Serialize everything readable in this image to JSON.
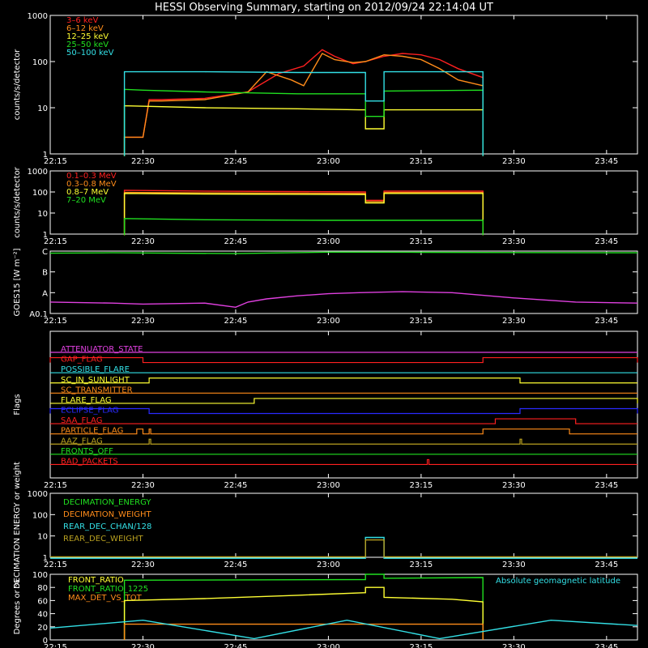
{
  "title": "HESSI Observing Summary, starting on 2012/09/24 22:14:04 UT",
  "x_ticks": [
    "22:15",
    "22:30",
    "22:45",
    "23:00",
    "23:15",
    "23:30",
    "23:45"
  ],
  "colors": {
    "red": "#ff2020",
    "orange": "#ff8c1a",
    "yellow": "#ffff33",
    "green": "#20e020",
    "cyan": "#33e0e6",
    "magenta": "#e040e0",
    "blue": "#2a2aff",
    "olive": "#b8a020",
    "white": "#ffffff"
  },
  "chart_data": [
    {
      "type": "line",
      "name": "lightcurve_low",
      "ylabel": "counts/s/detector",
      "y_scale": "log",
      "ylim": [
        1,
        1000
      ],
      "y_ticks": [
        "1",
        "10",
        "100",
        "1000"
      ],
      "legend": [
        "3–6 keV",
        "6–12 keV",
        "12–25 keV",
        "25–50 keV",
        "50–100 keV"
      ],
      "legend_colors": [
        "red",
        "orange",
        "yellow",
        "green",
        "cyan"
      ],
      "series": [
        {
          "name": "3–6 keV",
          "color": "red",
          "t": [
            "22:27",
            "22:27",
            "22:30",
            "22:31",
            "22:33",
            "22:40",
            "22:47",
            "22:52",
            "22:56",
            "22:59",
            "23:01",
            "23:04",
            "23:06",
            "23:09",
            "23:12",
            "23:15",
            "23:18",
            "23:21",
            "23:25",
            "23:25"
          ],
          "v": [
            0.9,
            2.3,
            2.3,
            15,
            15,
            16,
            22,
            55,
            80,
            180,
            130,
            90,
            100,
            130,
            150,
            140,
            110,
            70,
            45,
            0.9
          ]
        },
        {
          "name": "6–12 keV",
          "color": "orange",
          "t": [
            "22:27",
            "22:27",
            "22:30",
            "22:31",
            "22:33",
            "22:40",
            "22:47",
            "22:50",
            "22:54",
            "22:56",
            "22:59",
            "23:01",
            "23:04",
            "23:06",
            "23:09",
            "23:12",
            "23:15",
            "23:18",
            "23:21",
            "23:25",
            "23:25"
          ],
          "v": [
            0.9,
            2.3,
            2.3,
            14,
            14,
            15,
            22,
            60,
            40,
            30,
            150,
            110,
            95,
            100,
            140,
            130,
            110,
            70,
            40,
            30,
            0.9
          ]
        },
        {
          "name": "12–25 keV",
          "color": "yellow",
          "t": [
            "22:27",
            "22:27",
            "22:40",
            "22:55",
            "23:05",
            "23:06",
            "23:06",
            "23:09",
            "23:09",
            "23:25",
            "23:25"
          ],
          "v": [
            0.9,
            11,
            10,
            9.5,
            9,
            9,
            3.5,
            3.5,
            9,
            9,
            0.9
          ]
        },
        {
          "name": "25–50 keV",
          "color": "green",
          "t": [
            "22:27",
            "22:27",
            "22:30",
            "22:40",
            "22:55",
            "23:05",
            "23:06",
            "23:06",
            "23:09",
            "23:09",
            "23:25",
            "23:25"
          ],
          "v": [
            0.9,
            25,
            24,
            22,
            20,
            20,
            20,
            6.5,
            6.5,
            23,
            24,
            0.9
          ]
        },
        {
          "name": "50–100 keV",
          "color": "cyan",
          "t": [
            "22:27",
            "22:27",
            "22:40",
            "22:55",
            "23:05",
            "23:06",
            "23:06",
            "23:09",
            "23:09",
            "23:25",
            "23:25"
          ],
          "v": [
            0.9,
            60,
            60,
            58,
            58,
            58,
            14,
            14,
            60,
            60,
            0.9
          ]
        }
      ]
    },
    {
      "type": "line",
      "name": "lightcurve_high",
      "ylabel": "counts/s/detector",
      "y_scale": "log",
      "ylim": [
        1,
        1000
      ],
      "y_ticks": [
        "1",
        "10",
        "100",
        "1000"
      ],
      "legend": [
        "0.1–0.3 MeV",
        "0.3–0.8 MeV",
        "0.8–7 MeV",
        "7–20 MeV"
      ],
      "legend_colors": [
        "red",
        "orange",
        "yellow",
        "green"
      ],
      "series": [
        {
          "name": "0.1–0.3 MeV",
          "color": "red",
          "t": [
            "22:27",
            "22:27",
            "22:40",
            "23:06",
            "23:06",
            "23:09",
            "23:09",
            "23:25",
            "23:25"
          ],
          "v": [
            0.9,
            120,
            110,
            100,
            40,
            40,
            110,
            110,
            0.9
          ]
        },
        {
          "name": "0.3–0.8 MeV",
          "color": "orange",
          "t": [
            "22:27",
            "22:27",
            "22:40",
            "23:06",
            "23:06",
            "23:09",
            "23:09",
            "23:25",
            "23:25"
          ],
          "v": [
            0.9,
            95,
            90,
            85,
            35,
            35,
            95,
            95,
            0.9
          ]
        },
        {
          "name": "0.8–7 MeV",
          "color": "yellow",
          "t": [
            "22:27",
            "22:27",
            "22:40",
            "23:06",
            "23:06",
            "23:09",
            "23:09",
            "23:25",
            "23:25"
          ],
          "v": [
            0.9,
            85,
            80,
            75,
            30,
            30,
            85,
            85,
            0.9
          ]
        },
        {
          "name": "7–20 MeV",
          "color": "green",
          "t": [
            "22:27",
            "22:27",
            "22:40",
            "23:00",
            "23:25",
            "23:25"
          ],
          "v": [
            0.9,
            5.5,
            4.8,
            4.5,
            4.5,
            0.9
          ]
        }
      ]
    },
    {
      "type": "line",
      "name": "goes",
      "ylabel": "GOES15 [W m⁻²]",
      "y_ticks": [
        "A0.1",
        "A",
        "B",
        "C"
      ],
      "ylim": [
        0,
        3
      ],
      "series": [
        {
          "name": "GOES high",
          "color": "green",
          "t": [
            "22:15",
            "22:25",
            "22:45",
            "23:00",
            "23:15",
            "23:30",
            "23:50"
          ],
          "v": [
            2.9,
            2.92,
            2.88,
            2.95,
            2.94,
            2.93,
            2.92
          ]
        },
        {
          "name": "GOES low",
          "color": "magenta",
          "t": [
            "22:15",
            "22:25",
            "22:30",
            "22:40",
            "22:45",
            "22:47",
            "22:50",
            "22:55",
            "23:00",
            "23:05",
            "23:12",
            "23:20",
            "23:30",
            "23:40",
            "23:50"
          ],
          "v": [
            0.55,
            0.5,
            0.45,
            0.5,
            0.3,
            0.55,
            0.7,
            0.85,
            0.95,
            1.0,
            1.05,
            1.0,
            0.75,
            0.55,
            0.5
          ]
        }
      ]
    },
    {
      "type": "line",
      "name": "flags",
      "ylabel": "Flags",
      "flags": [
        {
          "label": "ATTENUATOR_STATE",
          "color": "magenta",
          "on": []
        },
        {
          "label": "GAP_FLAG",
          "color": "red",
          "on": [
            [
              "22:15",
              "22:30"
            ],
            [
              "23:25",
              "23:50"
            ]
          ]
        },
        {
          "label": "POSSIBLE_FLARE",
          "color": "cyan",
          "on": []
        },
        {
          "label": "SC_IN_SUNLIGHT",
          "color": "yellow",
          "on": [
            [
              "22:31",
              "23:31"
            ]
          ]
        },
        {
          "label": "SC_TRANSMITTER",
          "color": "orange",
          "on": []
        },
        {
          "label": "FLARE_FLAG",
          "color": "yellow",
          "on": [
            [
              "22:48",
              "23:50"
            ]
          ]
        },
        {
          "label": "ECLIPSE_FLAG",
          "color": "blue",
          "on": [
            [
              "22:15",
              "22:31"
            ],
            [
              "23:31",
              "23:50"
            ]
          ]
        },
        {
          "label": "SAA_FLAG",
          "color": "red",
          "on": [
            [
              "23:27",
              "23:40"
            ]
          ]
        },
        {
          "label": "PARTICLE_FLAG",
          "color": "orange",
          "on": [
            [
              "22:29",
              "22:30"
            ],
            [
              "22:31",
              "22:31"
            ],
            [
              "23:25",
              "23:39"
            ]
          ]
        },
        {
          "label": "AAZ_FLAG",
          "color": "olive",
          "on": [
            [
              "22:31",
              "22:31"
            ],
            [
              "23:31",
              "23:31"
            ]
          ]
        },
        {
          "label": "FRONTS_OFF",
          "color": "green",
          "on": []
        },
        {
          "label": "BAD_PACKETS",
          "color": "red",
          "on": [
            [
              "23:16",
              "23:16"
            ]
          ]
        }
      ]
    },
    {
      "type": "line",
      "name": "decimation",
      "ylabel": "DECIMATION ENERGY or weight",
      "y_scale": "log",
      "ylim": [
        1,
        1000
      ],
      "y_ticks": [
        "1",
        "10",
        "100",
        "1000"
      ],
      "legend": [
        "DECIMATION_ENERGY",
        "DECIMATION_WEIGHT",
        "REAR_DEC_CHAN/128",
        "REAR_DEC_WEIGHT"
      ],
      "legend_colors": [
        "green",
        "orange",
        "cyan",
        "olive"
      ],
      "series": [
        {
          "name": "REAR_DEC_CHAN/128",
          "color": "cyan",
          "t": [
            "22:15",
            "23:06",
            "23:06",
            "23:09",
            "23:09",
            "23:50"
          ],
          "v": [
            0.9,
            0.9,
            8.5,
            8.5,
            0.9,
            0.9
          ]
        },
        {
          "name": "REAR_DEC_WEIGHT",
          "color": "olive",
          "t": [
            "22:15",
            "23:06",
            "23:06",
            "23:09",
            "23:09",
            "23:50"
          ],
          "v": [
            1.05,
            1.05,
            6.5,
            6.5,
            1.05,
            1.05
          ]
        }
      ]
    },
    {
      "type": "line",
      "name": "ratios",
      "ylabel": "Degrees or %",
      "y_ticks": [
        "0",
        "20",
        "40",
        "60",
        "80",
        "100"
      ],
      "ylim": [
        0,
        100
      ],
      "legend": [
        "FRONT_RATIO",
        "FRONT_RATIO_1225",
        "MAX_DET_VS_TOT"
      ],
      "legend_colors": [
        "yellow",
        "green",
        "orange"
      ],
      "annotation": "Absolute geomagnetic latitude",
      "annotation_color": "cyan",
      "series": [
        {
          "name": "FRONT_RATIO_1225",
          "color": "green",
          "t": [
            "22:27",
            "22:27",
            "23:06",
            "23:06",
            "23:09",
            "23:09",
            "23:25",
            "23:25"
          ],
          "v": [
            0,
            91,
            92,
            100,
            100,
            94,
            95,
            0
          ]
        },
        {
          "name": "FRONT_RATIO",
          "color": "yellow",
          "t": [
            "22:27",
            "22:27",
            "22:40",
            "22:55",
            "23:06",
            "23:06",
            "23:09",
            "23:09",
            "23:20",
            "23:25",
            "23:25"
          ],
          "v": [
            0,
            60,
            63,
            68,
            72,
            80,
            80,
            65,
            62,
            58,
            0
          ]
        },
        {
          "name": "MAX_DET_VS_TOT",
          "color": "orange",
          "t": [
            "22:27",
            "22:27",
            "23:25",
            "23:25"
          ],
          "v": [
            0,
            24,
            24,
            0
          ]
        },
        {
          "name": "Absolute geomagnetic latitude",
          "color": "cyan",
          "t": [
            "22:15",
            "22:30",
            "22:48",
            "23:03",
            "23:18",
            "23:36",
            "23:50"
          ],
          "v": [
            18,
            30,
            2,
            30,
            2,
            30,
            22
          ]
        }
      ]
    }
  ]
}
